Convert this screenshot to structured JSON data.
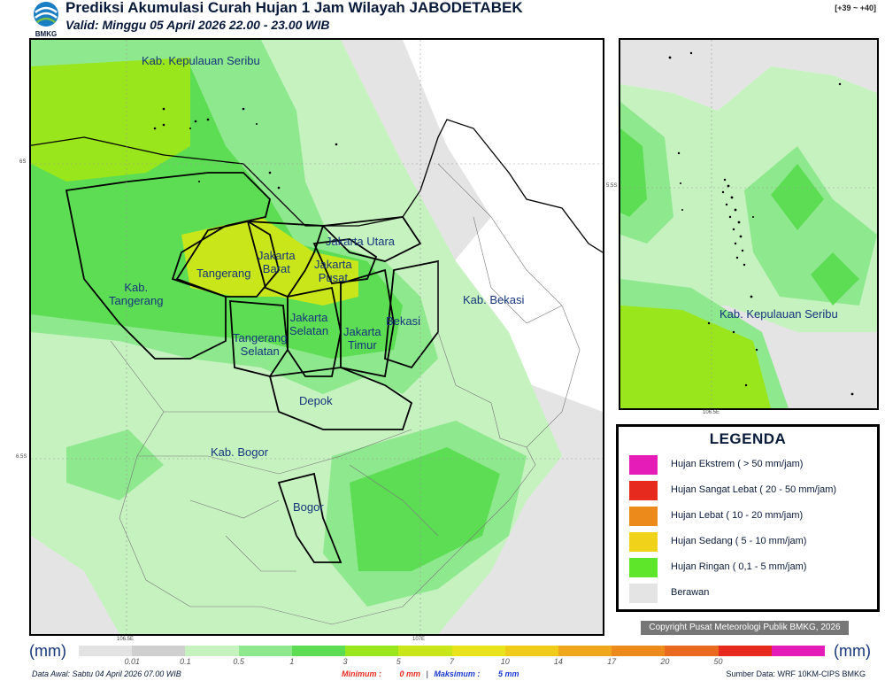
{
  "header": {
    "logo_text": "BMKG",
    "title": "Prediksi Akumulasi Curah Hujan 1 Jam Wilayah JABODETABEK",
    "valid": "Valid: Minggu 05 April 2026 22.00 - 23.00 WIB",
    "tz_offset": "[+39 ~ +40]"
  },
  "main_map": {
    "labels": {
      "kepulauan_seribu": "Kab. Kepulauan Seribu",
      "jakarta_utara": "Jakarta Utara",
      "jakarta_barat": "Jakarta\nBarat",
      "jakarta_pusat": "Jakarta\nPusat",
      "tangerang": "Tangerang",
      "kab_tangerang": "Kab.\nTangerang",
      "jakarta_selatan": "Jakarta\nSelatan",
      "jakarta_timur": "Jakarta\nTimur",
      "bekasi": "Bekasi",
      "kab_bekasi": "Kab. Bekasi",
      "tangerang_selatan": "Tangerang\nSelatan",
      "depok": "Depok",
      "kab_bogor": "Kab. Bogor",
      "bogor": "Bogor"
    },
    "lat_ticks": [
      "6S",
      "6.5S"
    ],
    "lon_ticks": [
      "106.5E",
      "107E"
    ]
  },
  "inset_map": {
    "label": "Kab. Kepulauan Seribu",
    "lat_tick": "5.5S",
    "lon_tick": "106.5E"
  },
  "legend": {
    "title": "LEGENDA",
    "items": [
      {
        "color": "#e61cb8",
        "label": "Hujan Ekstrem ( > 50 mm/jam)"
      },
      {
        "color": "#e62a1e",
        "label": "Hujan Sangat Lebat ( 20 - 50 mm/jam)"
      },
      {
        "color": "#ec8a1c",
        "label": "Hujan Lebat ( 10 - 20 mm/jam)"
      },
      {
        "color": "#f0d21a",
        "label": "Hujan Sedang ( 5 - 10 mm/jam)"
      },
      {
        "color": "#5de62a",
        "label": "Hujan Ringan ( 0,1 - 5 mm/jam)"
      },
      {
        "color": "#e4e4e4",
        "label": "Berawan"
      }
    ]
  },
  "copyright": "Copyright Pusat Meteorologi Publik BMKG, 2026",
  "scale": {
    "unit_left": "(mm)",
    "unit_right": "(mm)",
    "colors": [
      "#e2e2e2",
      "#cfcfcf",
      "#c6f2c0",
      "#8ee88e",
      "#5ddd54",
      "#9ae61c",
      "#c9e61a",
      "#e8e31a",
      "#f0cc1a",
      "#efa81c",
      "#ec8a1c",
      "#e86a1e",
      "#e62a1e",
      "#e61cb8"
    ],
    "labels": [
      "0.01",
      "0.1",
      "0.5",
      "1",
      "3",
      "5",
      "7",
      "10",
      "14",
      "17",
      "20",
      "50"
    ]
  },
  "footer": {
    "data_awal": "Data Awal: Sabtu 04 April 2026 07.00 WIB",
    "minimum_label": "Minimum :",
    "minimum_value": "0 mm",
    "maksimum_label": "Maksimum :",
    "maksimum_value": "5 mm",
    "source": "Sumber Data: WRF 10KM-CIPS BMKG"
  }
}
